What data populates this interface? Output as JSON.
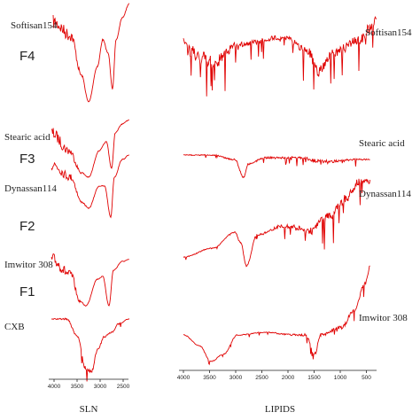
{
  "left_panel": {
    "labels": [
      "Softisan154",
      "F4",
      "Stearic acid",
      "F3",
      "Dynassan114",
      "F2",
      "Imwitor 308",
      "F1",
      "CXB"
    ],
    "x_ticks": [
      "4000",
      "3500",
      "3000",
      "2500"
    ],
    "x_label": "SLN"
  },
  "right_panel": {
    "labels": [
      "Softisan154",
      "Stearic acid",
      "Dynassan114",
      "Imwitor 308"
    ],
    "x_ticks": [
      "4000",
      "3500",
      "3000",
      "2500",
      "2000",
      "1500",
      "1000",
      "500"
    ],
    "x_label": "LIPIDS"
  }
}
